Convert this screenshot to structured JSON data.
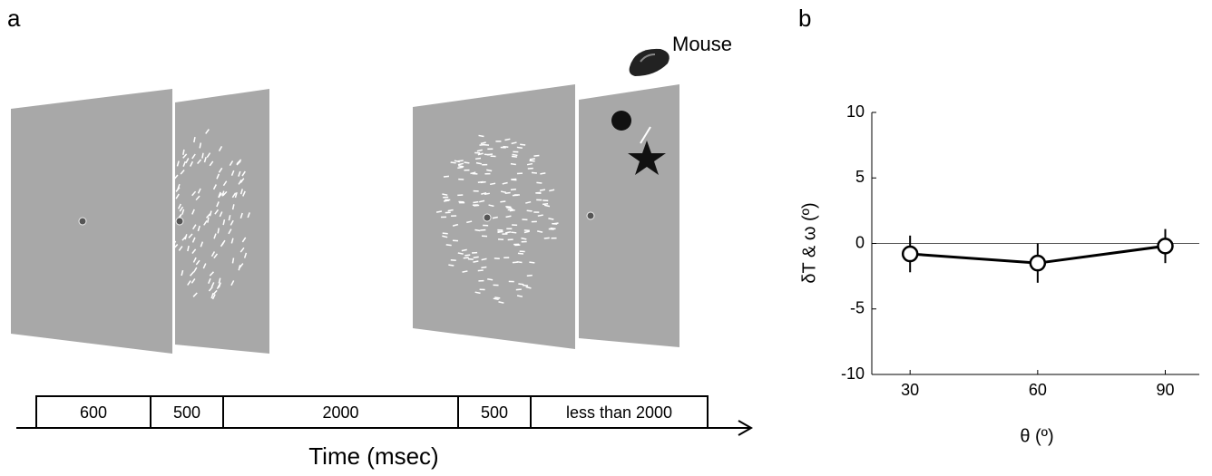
{
  "panel_a": {
    "label": "a",
    "device_label": "Mouse",
    "timeline": {
      "segments": [
        600,
        500,
        2000,
        500,
        "less than 2000"
      ],
      "axis_label": "Time (msec)"
    }
  },
  "chart_data": {
    "type": "line",
    "panel_label": "b",
    "xlabel": "θ (º)",
    "ylabel": "δT & ω (º)",
    "x": [
      30,
      60,
      90
    ],
    "series": [
      {
        "values": [
          -0.8,
          -1.5,
          -0.2
        ],
        "errors": [
          1.4,
          1.5,
          1.3
        ],
        "color": "#000000"
      }
    ],
    "xlim": [
      21,
      98
    ],
    "ylim": [
      -10,
      10
    ],
    "xticks": [
      30,
      60,
      90
    ],
    "yticks": [
      -10,
      -5,
      0,
      5,
      10
    ],
    "zero_line": true
  }
}
